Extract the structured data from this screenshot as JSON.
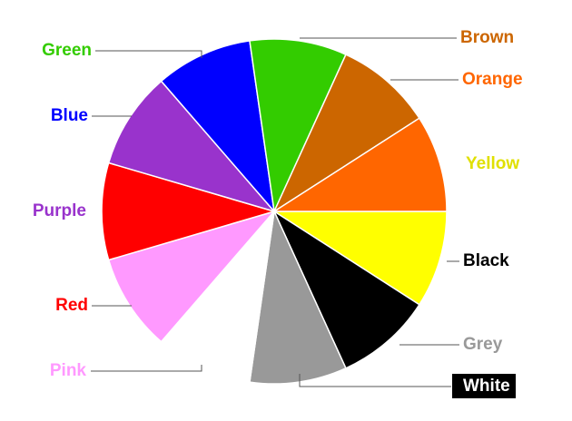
{
  "chart_data": {
    "type": "pie",
    "title": "",
    "slices": [
      {
        "label": "Yellow",
        "value": 1,
        "color": "#FFFF00",
        "label_color": "#E0E000"
      },
      {
        "label": "Black",
        "value": 1,
        "color": "#000000",
        "label_color": "#000000"
      },
      {
        "label": "Grey",
        "value": 1,
        "color": "#999999",
        "label_color": "#999999"
      },
      {
        "label": "White",
        "value": 1,
        "color": "#FFFFFF",
        "label_color": "#FFFFFF",
        "label_background": "#000000"
      },
      {
        "label": "Pink",
        "value": 1,
        "color": "#FF99FF",
        "label_color": "#FF99FF"
      },
      {
        "label": "Red",
        "value": 1,
        "color": "#FF0000",
        "label_color": "#FF0000"
      },
      {
        "label": "Purple",
        "value": 1,
        "color": "#9933CC",
        "label_color": "#9933CC"
      },
      {
        "label": "Blue",
        "value": 1,
        "color": "#0000FF",
        "label_color": "#0000FF"
      },
      {
        "label": "Green",
        "value": 1,
        "color": "#33CC00",
        "label_color": "#33CC00"
      },
      {
        "label": "Brown",
        "value": 1,
        "color": "#CC6600",
        "label_color": "#CC6600"
      },
      {
        "label": "Orange",
        "value": 1,
        "color": "#FF6600",
        "label_color": "#FF6600"
      }
    ],
    "legend": "none"
  }
}
